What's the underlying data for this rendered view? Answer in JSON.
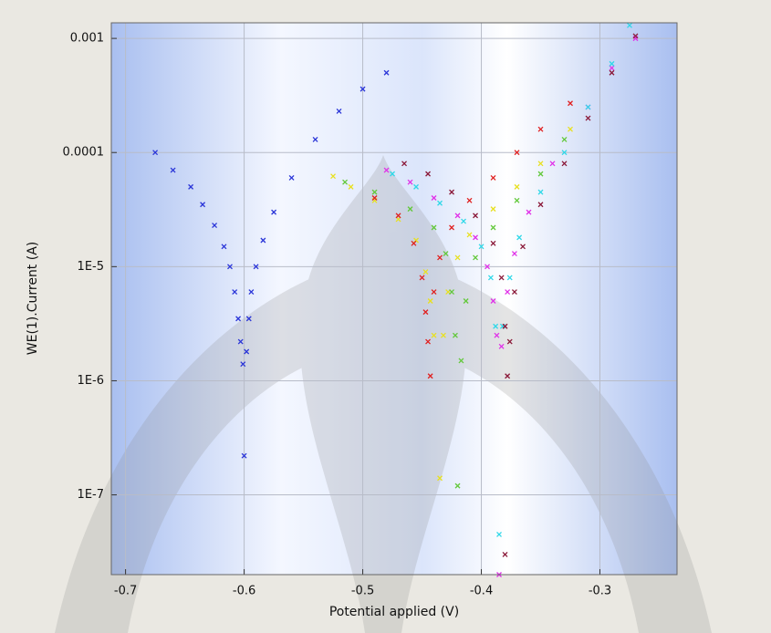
{
  "chart_data": {
    "type": "scatter",
    "x_label": "Potential applied (V)",
    "y_label": "WE(1).Current (A)",
    "xlim": [
      -0.712,
      -0.235
    ],
    "ylim": [
      2e-08,
      0.00137
    ],
    "y_log": true,
    "grid": true,
    "xticks": [
      -0.7,
      -0.6,
      -0.5,
      -0.4,
      -0.3
    ],
    "yticks": [
      0.001,
      0.0001,
      {
        "value": 1e-05,
        "label": "1E-5"
      },
      {
        "value": 1e-06,
        "label": "1E-6"
      },
      {
        "value": 1e-07,
        "label": "1E-7"
      }
    ],
    "series": [
      {
        "color": "#2a35d8",
        "x": [
          -0.675,
          -0.66,
          -0.645,
          -0.635,
          -0.625,
          -0.617,
          -0.612,
          -0.608,
          -0.605,
          -0.603,
          -0.601,
          -0.6,
          -0.598,
          -0.596,
          -0.594,
          -0.59,
          -0.584,
          -0.575,
          -0.56,
          -0.54,
          -0.52,
          -0.5,
          -0.48
        ],
        "values": [
          0.0001,
          7e-05,
          5e-05,
          3.5e-05,
          2.3e-05,
          1.5e-05,
          1e-05,
          6e-06,
          3.5e-06,
          2.2e-06,
          1.4e-06,
          2.2e-07,
          1.8e-06,
          3.5e-06,
          6e-06,
          1e-05,
          1.7e-05,
          3e-05,
          6e-05,
          0.00013,
          0.00023,
          0.00036,
          0.0005
        ]
      },
      {
        "color": "#e8e020",
        "x": [
          -0.525,
          -0.51,
          -0.49,
          -0.47,
          -0.455,
          -0.447,
          -0.443,
          -0.44,
          -0.435,
          -0.432,
          -0.428,
          -0.42,
          -0.41,
          -0.39,
          -0.37,
          -0.35,
          -0.325
        ],
        "values": [
          6.2e-05,
          5e-05,
          3.8e-05,
          2.6e-05,
          1.7e-05,
          9e-06,
          5e-06,
          2.5e-06,
          1.4e-07,
          2.5e-06,
          6e-06,
          1.2e-05,
          1.9e-05,
          3.2e-05,
          5e-05,
          8e-05,
          0.00016
        ]
      },
      {
        "color": "#62c83a",
        "x": [
          -0.515,
          -0.49,
          -0.46,
          -0.44,
          -0.43,
          -0.425,
          -0.422,
          -0.42,
          -0.417,
          -0.413,
          -0.405,
          -0.39,
          -0.37,
          -0.35,
          -0.33
        ],
        "values": [
          5.5e-05,
          4.5e-05,
          3.2e-05,
          2.2e-05,
          1.3e-05,
          6e-06,
          2.5e-06,
          1.2e-07,
          1.5e-06,
          5e-06,
          1.2e-05,
          2.2e-05,
          3.8e-05,
          6.5e-05,
          0.00013
        ]
      },
      {
        "color": "#e02020",
        "x": [
          -0.49,
          -0.47,
          -0.457,
          -0.45,
          -0.447,
          -0.445,
          -0.443,
          -0.44,
          -0.435,
          -0.425,
          -0.41,
          -0.39,
          -0.37,
          -0.35,
          -0.325
        ],
        "values": [
          4e-05,
          2.8e-05,
          1.6e-05,
          8e-06,
          4e-06,
          2.2e-06,
          1.1e-06,
          6e-06,
          1.2e-05,
          2.2e-05,
          3.8e-05,
          6e-05,
          0.0001,
          0.00016,
          0.00027
        ]
      },
      {
        "color": "#e030e8",
        "x": [
          -0.48,
          -0.46,
          -0.44,
          -0.42,
          -0.405,
          -0.395,
          -0.39,
          -0.387,
          -0.385,
          -0.383,
          -0.378,
          -0.372,
          -0.36,
          -0.34,
          -0.31,
          -0.29,
          -0.27
        ],
        "values": [
          7e-05,
          5.5e-05,
          4e-05,
          2.8e-05,
          1.8e-05,
          1e-05,
          5e-06,
          2.5e-06,
          2e-08,
          2e-06,
          6e-06,
          1.3e-05,
          3e-05,
          8e-05,
          0.00025,
          0.00055,
          0.001
        ]
      },
      {
        "color": "#30d8e8",
        "x": [
          -0.475,
          -0.455,
          -0.435,
          -0.415,
          -0.4,
          -0.392,
          -0.388,
          -0.385,
          -0.382,
          -0.376,
          -0.368,
          -0.35,
          -0.33,
          -0.31,
          -0.29,
          -0.275
        ],
        "values": [
          6.5e-05,
          5e-05,
          3.6e-05,
          2.5e-05,
          1.5e-05,
          8e-06,
          3e-06,
          4.5e-08,
          3e-06,
          8e-06,
          1.8e-05,
          4.5e-05,
          0.0001,
          0.00025,
          0.0006,
          0.0013
        ]
      },
      {
        "color": "#8a1838",
        "x": [
          -0.465,
          -0.445,
          -0.425,
          -0.405,
          -0.39,
          -0.383,
          -0.38,
          -0.378,
          -0.38,
          -0.376,
          -0.372,
          -0.365,
          -0.35,
          -0.33,
          -0.31,
          -0.29,
          -0.27
        ],
        "values": [
          8e-05,
          6.5e-05,
          4.5e-05,
          2.8e-05,
          1.6e-05,
          8e-06,
          3e-06,
          1.1e-06,
          3e-08,
          2.2e-06,
          6e-06,
          1.5e-05,
          3.5e-05,
          8e-05,
          0.0002,
          0.0005,
          0.00105
        ]
      }
    ]
  }
}
